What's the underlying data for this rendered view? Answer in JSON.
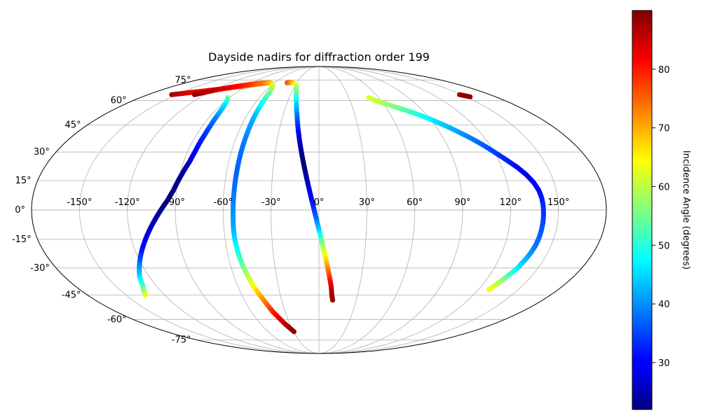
{
  "chart_data": {
    "type": "scatter",
    "projection": "mollweide",
    "title": "Dayside nadirs for diffraction order 199",
    "xlabel": "",
    "ylabel": "",
    "xlim": [
      -180,
      180
    ],
    "ylim": [
      -90,
      90
    ],
    "grid": true,
    "longitude_ticks": [
      -150,
      -120,
      -90,
      -60,
      -30,
      0,
      30,
      60,
      90,
      120,
      150
    ],
    "latitude_ticks": [
      -75,
      -60,
      -45,
      -30,
      -15,
      0,
      15,
      30,
      45,
      60,
      75
    ],
    "longitude_tick_labels": [
      "-150°",
      "-120°",
      "-90°",
      "-60°",
      "-30°",
      "0°",
      "30°",
      "60°",
      "90°",
      "120°",
      "150°"
    ],
    "latitude_tick_labels": [
      "-75°",
      "-60°",
      "-45°",
      "-30°",
      "-15°",
      "0°",
      "15°",
      "30°",
      "45°",
      "60°",
      "75°"
    ],
    "colorbar": {
      "label": "Incidence Angle (degrees)",
      "colormap": "jet",
      "range": [
        22,
        90
      ],
      "ticks": [
        30,
        40,
        50,
        60,
        70,
        80
      ],
      "tick_labels": [
        "30",
        "40",
        "50",
        "60",
        "70",
        "80"
      ],
      "placement": "right"
    },
    "series": [
      {
        "lon_deg": [
          -155,
          -150,
          -145,
          -140,
          -135,
          -130,
          -125,
          -120,
          -115,
          -110,
          -105,
          -100,
          -95,
          -90,
          -85,
          -80,
          -75,
          -70,
          -66
        ],
        "lat_deg": [
          64,
          64.5,
          65,
          65.5,
          66,
          66.5,
          67,
          67.5,
          68,
          68.5,
          69,
          69.5,
          70,
          70.5,
          71,
          71.5,
          72,
          72.5,
          72.8
        ],
        "incidence_deg": [
          88,
          86,
          85,
          84,
          83,
          82,
          81,
          80,
          79,
          78,
          77,
          76,
          75,
          74,
          73,
          72,
          71,
          70,
          69
        ]
      },
      {
        "lon_deg": [
          -131,
          -127,
          -123,
          -119,
          -115,
          -111,
          -107,
          -103,
          -99,
          -95,
          -91,
          -87,
          -83,
          -79,
          -75,
          -71,
          -67,
          -63,
          -59,
          -56,
          -54,
          -53.5,
          -53.3,
          -53.2,
          -53.3,
          -53.4,
          -53.6,
          -53.8,
          -54,
          -53.8,
          -53.3,
          -52.5,
          -51.5,
          -50,
          -48.5,
          -47,
          -45.5,
          -44,
          -42.5,
          -41,
          -39.5,
          -38,
          -36.5,
          -35,
          -33.5,
          -32,
          -30.5,
          -29.5
        ],
        "lat_deg": [
          64,
          65,
          66,
          67,
          67.8,
          68.5,
          69.2,
          69.8,
          70.3,
          70.8,
          71.3,
          71.7,
          72.1,
          72.4,
          72.6,
          72.7,
          72.6,
          72.2,
          71,
          69,
          66,
          60,
          50,
          40,
          30,
          20,
          10,
          0,
          -10,
          -15,
          -20,
          -25,
          -30,
          -35,
          -40,
          -43,
          -46,
          -49,
          -52,
          -55,
          -57,
          -59,
          -61,
          -63,
          -64.5,
          -66,
          -67.5,
          -68.5
        ],
        "incidence_deg": [
          89,
          88,
          87,
          86,
          85,
          84,
          83,
          82,
          81,
          80,
          79,
          78,
          76,
          75,
          74,
          72,
          70,
          67,
          63,
          60,
          56,
          50,
          43,
          40,
          38,
          37,
          38,
          40,
          42,
          45,
          48,
          51,
          55,
          60,
          64,
          67,
          70,
          73,
          76,
          79,
          81,
          83,
          85,
          86,
          87,
          88,
          89,
          89
        ]
      },
      {
        "lon_deg": [
          -92,
          -90,
          -88,
          -86,
          -85,
          -84.5,
          -84,
          -84,
          -84.5,
          -85,
          -86,
          -88,
          -90,
          -92,
          -95,
          -99,
          -103,
          -107,
          -111,
          -115,
          -119,
          -123,
          -127,
          -130,
          -133,
          -135
        ],
        "lat_deg": [
          62,
          61,
          59,
          56,
          53,
          50,
          45,
          40,
          35,
          30,
          25,
          20,
          15,
          10,
          5,
          0,
          -5,
          -10,
          -15,
          -20,
          -25,
          -30,
          -35,
          -40,
          -43,
          -45
        ],
        "incidence_deg": [
          57,
          52,
          48,
          45,
          43,
          40,
          37,
          34,
          32,
          30,
          27,
          24,
          23,
          22,
          22,
          23,
          25,
          27,
          29,
          31,
          35,
          40,
          45,
          52,
          57,
          63
        ]
      },
      {
        "lon_deg": [
          -43,
          -41,
          -39,
          -37,
          -35,
          -33,
          -31,
          -29,
          -27,
          -25,
          -23,
          -21,
          -19.5,
          -18,
          -16.5,
          -15,
          -13.5,
          -12,
          -10.5,
          -9,
          -7.5,
          -6,
          -4.5,
          -3,
          -1.5,
          0,
          1.5,
          3,
          4.5,
          6,
          7.5,
          9,
          10,
          11
        ],
        "lat_deg": [
          72.7,
          72.8,
          72.9,
          72.8,
          72.6,
          72.2,
          71.5,
          70.5,
          69,
          66,
          62,
          58,
          54,
          50,
          45,
          40,
          35,
          30,
          25,
          20,
          15,
          10,
          5,
          0,
          -5,
          -10,
          -15,
          -20,
          -25,
          -30,
          -35,
          -40,
          -45,
          -48
        ],
        "incidence_deg": [
          77,
          75,
          73,
          71,
          69,
          67,
          64,
          61,
          58,
          55,
          50,
          45,
          42,
          38,
          34,
          30,
          26,
          23,
          22,
          23,
          25,
          28,
          31,
          34,
          38,
          44,
          52,
          60,
          66,
          72,
          78,
          84,
          88,
          89
        ]
      },
      {
        "lon_deg": [
          50,
          55,
          60,
          65,
          70,
          75,
          80,
          85,
          90,
          95,
          100,
          105,
          110,
          115,
          120,
          125,
          130,
          134,
          137,
          139,
          140,
          140.5,
          140.7,
          140.8,
          140.7,
          140.5,
          140,
          139,
          137.5,
          136,
          134,
          132,
          130,
          128
        ],
        "lat_deg": [
          62,
          60,
          58.5,
          57,
          55.5,
          54,
          52.5,
          50.5,
          48.5,
          46,
          43.5,
          40.5,
          37.5,
          34,
          30,
          26,
          22,
          18,
          14,
          10,
          6,
          2,
          -2,
          -6,
          -10,
          -14,
          -18,
          -22,
          -26,
          -30,
          -33,
          -36,
          -39,
          -42
        ],
        "incidence_deg": [
          63,
          61,
          59,
          57,
          55,
          53,
          51,
          49,
          47,
          45,
          43,
          41,
          39,
          37,
          35,
          33,
          31,
          30,
          30,
          31,
          32,
          33,
          34,
          35,
          36,
          37,
          38,
          40,
          43,
          46,
          50,
          55,
          60,
          64
        ]
      },
      {
        "lon_deg": [
          148,
          150,
          152,
          154
        ],
        "lat_deg": [
          64,
          63.5,
          63,
          62.5
        ],
        "incidence_deg": [
          88,
          89,
          89,
          89
        ]
      }
    ]
  }
}
